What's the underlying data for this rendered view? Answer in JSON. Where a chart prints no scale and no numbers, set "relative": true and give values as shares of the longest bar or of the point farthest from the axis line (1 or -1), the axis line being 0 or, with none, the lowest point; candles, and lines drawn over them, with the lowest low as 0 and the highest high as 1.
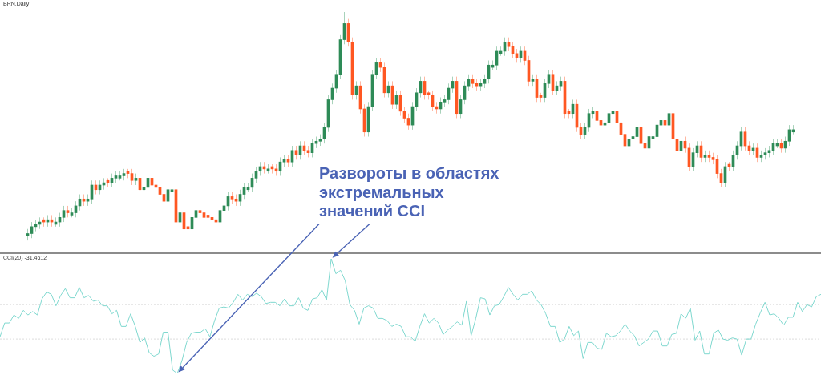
{
  "chart_data": [
    {
      "type": "candlestick",
      "title": "BRN,Daily",
      "relative": true,
      "categories": [
        null,
        null,
        null,
        null,
        null,
        null,
        null,
        null,
        null,
        null,
        null,
        null,
        null,
        null,
        null,
        null,
        null,
        null,
        null,
        null,
        null,
        null,
        null,
        null,
        null,
        null,
        null,
        null,
        null,
        null,
        null,
        null,
        null,
        null,
        null,
        null,
        null,
        null,
        null,
        null,
        null,
        null,
        null,
        null,
        null,
        null,
        null,
        null,
        null,
        null,
        null,
        null,
        null,
        null,
        null,
        null,
        null,
        null,
        null,
        null,
        null,
        null,
        null,
        null,
        null,
        null,
        null,
        null,
        null,
        null,
        null,
        null,
        null,
        null,
        null,
        null,
        null,
        null,
        null,
        null,
        null,
        null,
        null,
        null,
        null,
        null,
        null,
        null,
        null,
        null,
        null,
        null,
        null,
        null,
        null,
        null,
        null,
        null,
        null,
        null,
        null,
        null,
        null,
        null,
        null,
        null,
        null,
        null,
        null,
        null,
        null,
        null,
        null,
        null,
        null,
        null,
        null,
        null,
        null,
        null,
        null,
        null,
        null,
        null,
        null,
        null,
        null,
        null,
        null,
        null,
        null,
        null,
        null,
        null,
        null,
        null,
        null,
        null,
        null,
        null,
        null,
        null,
        null,
        null,
        null,
        null,
        null,
        null,
        null,
        null,
        null,
        null,
        null,
        null,
        null,
        null,
        null,
        null,
        null,
        null,
        null,
        null,
        null,
        null,
        null,
        null,
        null,
        null,
        null,
        null,
        null,
        null,
        null,
        null,
        null,
        null,
        null,
        null,
        null,
        null,
        null,
        null,
        null,
        null,
        null,
        null,
        null,
        null,
        null,
        null,
        null,
        null
      ],
      "ohlc": [
        [
          0.03,
          0.06,
          0.01,
          0.04
        ],
        [
          0.04,
          0.09,
          0.02,
          0.07
        ],
        [
          0.07,
          0.1,
          0.05,
          0.08
        ],
        [
          0.08,
          0.11,
          0.06,
          0.09
        ],
        [
          0.1,
          0.11,
          0.07,
          0.09
        ],
        [
          0.09,
          0.12,
          0.07,
          0.1
        ],
        [
          0.1,
          0.12,
          0.07,
          0.09
        ],
        [
          0.08,
          0.11,
          0.07,
          0.09
        ],
        [
          0.09,
          0.13,
          0.07,
          0.11
        ],
        [
          0.11,
          0.16,
          0.09,
          0.14
        ],
        [
          0.14,
          0.16,
          0.11,
          0.13
        ],
        [
          0.12,
          0.15,
          0.11,
          0.13
        ],
        [
          0.13,
          0.18,
          0.11,
          0.16
        ],
        [
          0.16,
          0.21,
          0.14,
          0.19
        ],
        [
          0.19,
          0.21,
          0.16,
          0.18
        ],
        [
          0.18,
          0.21,
          0.16,
          0.19
        ],
        [
          0.19,
          0.27,
          0.17,
          0.25
        ],
        [
          0.25,
          0.27,
          0.21,
          0.23
        ],
        [
          0.23,
          0.27,
          0.21,
          0.25
        ],
        [
          0.25,
          0.28,
          0.23,
          0.26
        ],
        [
          0.27,
          0.28,
          0.24,
          0.26
        ],
        [
          0.26,
          0.3,
          0.24,
          0.28
        ],
        [
          0.28,
          0.31,
          0.26,
          0.29
        ],
        [
          0.28,
          0.31,
          0.27,
          0.29
        ],
        [
          0.29,
          0.32,
          0.27,
          0.3
        ],
        [
          0.31,
          0.32,
          0.28,
          0.3
        ],
        [
          0.3,
          0.32,
          0.25,
          0.27
        ],
        [
          0.27,
          0.3,
          0.25,
          0.28
        ],
        [
          0.28,
          0.3,
          0.21,
          0.23
        ],
        [
          0.23,
          0.26,
          0.21,
          0.24
        ],
        [
          0.24,
          0.3,
          0.22,
          0.28
        ],
        [
          0.28,
          0.3,
          0.23,
          0.25
        ],
        [
          0.25,
          0.27,
          0.22,
          0.24
        ],
        [
          0.24,
          0.26,
          0.19,
          0.21
        ],
        [
          0.21,
          0.23,
          0.16,
          0.18
        ],
        [
          0.18,
          0.25,
          0.16,
          0.23
        ],
        [
          0.22,
          0.25,
          0.21,
          0.23
        ],
        [
          0.23,
          0.25,
          0.07,
          0.09
        ],
        [
          0.09,
          0.15,
          0.07,
          0.13
        ],
        [
          0.13,
          0.15,
          0.0,
          0.06
        ],
        [
          0.07,
          0.08,
          0.04,
          0.06
        ],
        [
          0.06,
          0.13,
          0.04,
          0.11
        ],
        [
          0.11,
          0.16,
          0.09,
          0.14
        ],
        [
          0.14,
          0.16,
          0.11,
          0.13
        ],
        [
          0.13,
          0.15,
          0.09,
          0.11
        ],
        [
          0.12,
          0.13,
          0.09,
          0.11
        ],
        [
          0.11,
          0.13,
          0.08,
          0.1
        ],
        [
          0.1,
          0.12,
          0.07,
          0.09
        ],
        [
          0.09,
          0.16,
          0.07,
          0.14
        ],
        [
          0.14,
          0.18,
          0.12,
          0.16
        ],
        [
          0.16,
          0.22,
          0.14,
          0.2
        ],
        [
          0.2,
          0.22,
          0.17,
          0.19
        ],
        [
          0.19,
          0.21,
          0.16,
          0.18
        ],
        [
          0.18,
          0.23,
          0.16,
          0.21
        ],
        [
          0.21,
          0.26,
          0.19,
          0.24
        ],
        [
          0.23,
          0.26,
          0.22,
          0.24
        ],
        [
          0.24,
          0.3,
          0.22,
          0.28
        ],
        [
          0.28,
          0.33,
          0.26,
          0.31
        ],
        [
          0.31,
          0.35,
          0.29,
          0.33
        ],
        [
          0.33,
          0.35,
          0.3,
          0.32
        ],
        [
          0.31,
          0.34,
          0.3,
          0.32
        ],
        [
          0.33,
          0.34,
          0.3,
          0.32
        ],
        [
          0.32,
          0.34,
          0.29,
          0.31
        ],
        [
          0.31,
          0.37,
          0.29,
          0.35
        ],
        [
          0.35,
          0.38,
          0.33,
          0.36
        ],
        [
          0.36,
          0.38,
          0.33,
          0.35
        ],
        [
          0.35,
          0.42,
          0.33,
          0.4
        ],
        [
          0.4,
          0.42,
          0.36,
          0.38
        ],
        [
          0.38,
          0.44,
          0.36,
          0.42
        ],
        [
          0.42,
          0.44,
          0.38,
          0.4
        ],
        [
          0.4,
          0.42,
          0.37,
          0.39
        ],
        [
          0.39,
          0.45,
          0.37,
          0.43
        ],
        [
          0.43,
          0.46,
          0.41,
          0.44
        ],
        [
          0.44,
          0.47,
          0.42,
          0.45
        ],
        [
          0.45,
          0.52,
          0.43,
          0.5
        ],
        [
          0.5,
          0.64,
          0.48,
          0.62
        ],
        [
          0.62,
          0.69,
          0.6,
          0.67
        ],
        [
          0.67,
          0.75,
          0.65,
          0.73
        ],
        [
          0.73,
          0.9,
          0.71,
          0.88
        ],
        [
          0.88,
          1.0,
          0.86,
          0.95
        ],
        [
          0.95,
          0.97,
          0.85,
          0.87
        ],
        [
          0.87,
          0.89,
          0.62,
          0.64
        ],
        [
          0.64,
          0.7,
          0.62,
          0.68
        ],
        [
          0.68,
          0.7,
          0.56,
          0.58
        ],
        [
          0.58,
          0.6,
          0.46,
          0.48
        ],
        [
          0.48,
          0.61,
          0.46,
          0.59
        ],
        [
          0.59,
          0.75,
          0.57,
          0.73
        ],
        [
          0.73,
          0.8,
          0.71,
          0.78
        ],
        [
          0.78,
          0.8,
          0.74,
          0.76
        ],
        [
          0.76,
          0.78,
          0.63,
          0.65
        ],
        [
          0.65,
          0.7,
          0.63,
          0.68
        ],
        [
          0.68,
          0.7,
          0.58,
          0.6
        ],
        [
          0.6,
          0.66,
          0.58,
          0.64
        ],
        [
          0.64,
          0.66,
          0.55,
          0.57
        ],
        [
          0.57,
          0.59,
          0.52,
          0.54
        ],
        [
          0.54,
          0.56,
          0.49,
          0.51
        ],
        [
          0.51,
          0.61,
          0.49,
          0.59
        ],
        [
          0.59,
          0.67,
          0.57,
          0.65
        ],
        [
          0.65,
          0.72,
          0.63,
          0.7
        ],
        [
          0.7,
          0.72,
          0.62,
          0.64
        ],
        [
          0.65,
          0.66,
          0.62,
          0.64
        ],
        [
          0.64,
          0.66,
          0.57,
          0.59
        ],
        [
          0.59,
          0.61,
          0.56,
          0.58
        ],
        [
          0.58,
          0.63,
          0.56,
          0.61
        ],
        [
          0.61,
          0.64,
          0.59,
          0.62
        ],
        [
          0.62,
          0.69,
          0.6,
          0.67
        ],
        [
          0.67,
          0.72,
          0.65,
          0.7
        ],
        [
          0.7,
          0.72,
          0.54,
          0.56
        ],
        [
          0.56,
          0.64,
          0.54,
          0.62
        ],
        [
          0.62,
          0.7,
          0.6,
          0.68
        ],
        [
          0.68,
          0.73,
          0.66,
          0.71
        ],
        [
          0.71,
          0.73,
          0.67,
          0.69
        ],
        [
          0.69,
          0.71,
          0.66,
          0.68
        ],
        [
          0.68,
          0.71,
          0.66,
          0.69
        ],
        [
          0.69,
          0.73,
          0.67,
          0.71
        ],
        [
          0.71,
          0.79,
          0.69,
          0.77
        ],
        [
          0.76,
          0.79,
          0.75,
          0.77
        ],
        [
          0.77,
          0.85,
          0.75,
          0.83
        ],
        [
          0.82,
          0.85,
          0.81,
          0.83
        ],
        [
          0.83,
          0.89,
          0.81,
          0.87
        ],
        [
          0.87,
          0.89,
          0.83,
          0.85
        ],
        [
          0.85,
          0.87,
          0.8,
          0.82
        ],
        [
          0.82,
          0.84,
          0.78,
          0.8
        ],
        [
          0.8,
          0.85,
          0.78,
          0.83
        ],
        [
          0.83,
          0.85,
          0.77,
          0.79
        ],
        [
          0.79,
          0.81,
          0.68,
          0.7
        ],
        [
          0.7,
          0.73,
          0.68,
          0.71
        ],
        [
          0.71,
          0.73,
          0.61,
          0.63
        ],
        [
          0.64,
          0.65,
          0.61,
          0.63
        ],
        [
          0.63,
          0.71,
          0.61,
          0.69
        ],
        [
          0.69,
          0.75,
          0.67,
          0.73
        ],
        [
          0.73,
          0.75,
          0.64,
          0.66
        ],
        [
          0.66,
          0.7,
          0.64,
          0.68
        ],
        [
          0.68,
          0.72,
          0.66,
          0.7
        ],
        [
          0.7,
          0.72,
          0.54,
          0.56
        ],
        [
          0.57,
          0.58,
          0.54,
          0.56
        ],
        [
          0.56,
          0.62,
          0.54,
          0.6
        ],
        [
          0.6,
          0.62,
          0.48,
          0.5
        ],
        [
          0.5,
          0.52,
          0.45,
          0.47
        ],
        [
          0.47,
          0.52,
          0.45,
          0.5
        ],
        [
          0.5,
          0.58,
          0.48,
          0.56
        ],
        [
          0.56,
          0.59,
          0.54,
          0.57
        ],
        [
          0.57,
          0.59,
          0.51,
          0.53
        ],
        [
          0.53,
          0.55,
          0.49,
          0.51
        ],
        [
          0.51,
          0.54,
          0.49,
          0.52
        ],
        [
          0.52,
          0.58,
          0.5,
          0.56
        ],
        [
          0.56,
          0.59,
          0.54,
          0.57
        ],
        [
          0.57,
          0.59,
          0.5,
          0.52
        ],
        [
          0.52,
          0.54,
          0.45,
          0.47
        ],
        [
          0.47,
          0.49,
          0.4,
          0.42
        ],
        [
          0.42,
          0.47,
          0.4,
          0.45
        ],
        [
          0.45,
          0.48,
          0.43,
          0.46
        ],
        [
          0.46,
          0.52,
          0.44,
          0.5
        ],
        [
          0.5,
          0.52,
          0.41,
          0.43
        ],
        [
          0.43,
          0.45,
          0.39,
          0.41
        ],
        [
          0.41,
          0.48,
          0.39,
          0.46
        ],
        [
          0.45,
          0.48,
          0.44,
          0.46
        ],
        [
          0.46,
          0.53,
          0.44,
          0.51
        ],
        [
          0.51,
          0.55,
          0.49,
          0.53
        ],
        [
          0.53,
          0.55,
          0.49,
          0.51
        ],
        [
          0.51,
          0.58,
          0.49,
          0.56
        ],
        [
          0.56,
          0.58,
          0.43,
          0.45
        ],
        [
          0.45,
          0.47,
          0.38,
          0.4
        ],
        [
          0.4,
          0.46,
          0.38,
          0.44
        ],
        [
          0.44,
          0.46,
          0.39,
          0.41
        ],
        [
          0.41,
          0.43,
          0.31,
          0.33
        ],
        [
          0.33,
          0.41,
          0.31,
          0.39
        ],
        [
          0.39,
          0.44,
          0.37,
          0.42
        ],
        [
          0.42,
          0.44,
          0.35,
          0.37
        ],
        [
          0.37,
          0.4,
          0.35,
          0.38
        ],
        [
          0.38,
          0.4,
          0.35,
          0.37
        ],
        [
          0.37,
          0.39,
          0.34,
          0.36
        ],
        [
          0.36,
          0.38,
          0.28,
          0.3
        ],
        [
          0.3,
          0.32,
          0.24,
          0.26
        ],
        [
          0.26,
          0.35,
          0.24,
          0.33
        ],
        [
          0.34,
          0.35,
          0.31,
          0.33
        ],
        [
          0.33,
          0.4,
          0.31,
          0.38
        ],
        [
          0.38,
          0.44,
          0.36,
          0.42
        ],
        [
          0.42,
          0.5,
          0.4,
          0.48
        ],
        [
          0.48,
          0.5,
          0.4,
          0.42
        ],
        [
          0.42,
          0.44,
          0.38,
          0.4
        ],
        [
          0.4,
          0.43,
          0.38,
          0.41
        ],
        [
          0.41,
          0.43,
          0.35,
          0.37
        ],
        [
          0.37,
          0.4,
          0.35,
          0.38
        ],
        [
          0.38,
          0.41,
          0.36,
          0.39
        ],
        [
          0.39,
          0.42,
          0.37,
          0.4
        ],
        [
          0.4,
          0.45,
          0.38,
          0.43
        ],
        [
          0.42,
          0.45,
          0.41,
          0.43
        ],
        [
          0.43,
          0.45,
          0.39,
          0.41
        ],
        [
          0.41,
          0.46,
          0.39,
          0.44
        ],
        [
          0.44,
          0.51,
          0.42,
          0.49
        ],
        [
          0.48,
          0.51,
          0.47,
          0.49
        ]
      ],
      "annotations": [
        "Развороты в областях экстремальных значений CCI"
      ]
    },
    {
      "type": "line",
      "title": "CCI(20) -31.4612",
      "relative": true,
      "marker": "none",
      "categories": [
        null,
        null,
        null,
        null,
        null,
        null,
        null,
        null,
        null,
        null,
        null,
        null,
        null,
        null,
        null,
        null,
        null,
        null,
        null,
        null,
        null,
        null,
        null,
        null,
        null,
        null,
        null,
        null,
        null,
        null,
        null,
        null,
        null,
        null,
        null,
        null,
        null,
        null,
        null,
        null,
        null,
        null,
        null,
        null,
        null,
        null,
        null,
        null,
        null,
        null,
        null,
        null,
        null,
        null,
        null,
        null,
        null,
        null,
        null,
        null,
        null,
        null,
        null,
        null,
        null,
        null,
        null,
        null,
        null,
        null,
        null,
        null,
        null,
        null,
        null,
        null,
        null,
        null,
        null,
        null,
        null,
        null,
        null,
        null,
        null,
        null,
        null,
        null,
        null,
        null,
        null,
        null,
        null,
        null,
        null,
        null,
        null,
        null,
        null,
        null,
        null,
        null,
        null,
        null,
        null,
        null,
        null,
        null,
        null,
        null,
        null,
        null,
        null,
        null,
        null,
        null,
        null,
        null,
        null,
        null,
        null,
        null,
        null,
        null,
        null,
        null,
        null,
        null,
        null,
        null,
        null,
        null,
        null,
        null,
        null,
        null,
        null,
        null,
        null,
        null,
        null,
        null,
        null,
        null,
        null,
        null,
        null,
        null,
        null,
        null,
        null,
        null,
        null,
        null,
        null,
        null,
        null,
        null,
        null,
        null,
        null,
        null,
        null,
        null,
        null,
        null,
        null,
        null,
        null,
        null,
        null,
        null,
        null,
        null,
        null,
        null,
        null
      ],
      "series": [
        {
          "color": "#7fd8cf",
          "values": [
            0.32,
            0.44,
            0.44,
            0.51,
            0.48,
            0.55,
            0.51,
            0.54,
            0.51,
            0.65,
            0.71,
            0.69,
            0.59,
            0.68,
            0.74,
            0.66,
            0.66,
            0.75,
            0.66,
            0.68,
            0.63,
            0.64,
            0.59,
            0.59,
            0.52,
            0.55,
            0.41,
            0.41,
            0.52,
            0.41,
            0.27,
            0.31,
            0.18,
            0.15,
            0.17,
            0.36,
            0.36,
            0.03,
            0,
            0.11,
            0.27,
            0.35,
            0.36,
            0.36,
            0.39,
            0.32,
            0.46,
            0.57,
            0.58,
            0.57,
            0.62,
            0.69,
            0.64,
            0.69,
            0.67,
            0.7,
            0.67,
            0.61,
            0.62,
            0.62,
            0.59,
            0.65,
            0.59,
            0.59,
            0.66,
            0.57,
            0.55,
            0.65,
            0.66,
            0.73,
            0.64,
            1,
            0.87,
            0.9,
            0.81,
            0.6,
            0.55,
            0.43,
            0.57,
            0.59,
            0.57,
            0.48,
            0.48,
            0.46,
            0.41,
            0.43,
            0.41,
            0.32,
            0.32,
            0.28,
            0.41,
            0.52,
            0.44,
            0.48,
            0.44,
            0.34,
            0.38,
            0.41,
            0.45,
            0.42,
            0.63,
            0.33,
            0.48,
            0.66,
            0.65,
            0.51,
            0.59,
            0.6,
            0.67,
            0.75,
            0.69,
            0.64,
            0.69,
            0.69,
            0.72,
            0.64,
            0.6,
            0.52,
            0.41,
            0.41,
            0.27,
            0.3,
            0.41,
            0.33,
            0.37,
            0.13,
            0.27,
            0.27,
            0.22,
            0.21,
            0.35,
            0.32,
            0.33,
            0.37,
            0.43,
            0.37,
            0.33,
            0.24,
            0.27,
            0.3,
            0.37,
            0.37,
            0.24,
            0.24,
            0.34,
            0.35,
            0.52,
            0.48,
            0.57,
            0.29,
            0.37,
            0.17,
            0.17,
            0.35,
            0.38,
            0.3,
            0.29,
            0.31,
            0.3,
            0.16,
            0.3,
            0.3,
            0.43,
            0.53,
            0.62,
            0.51,
            0.52,
            0.48,
            0.42,
            0.49,
            0.49,
            0.62,
            0.54,
            0.6,
            0.58,
            0.67,
            0.69
          ]
        }
      ],
      "ref_lines": [
        {
          "axis": "y",
          "value": 0.6,
          "color": "#dcdcdc",
          "line_style": "dotted"
        },
        {
          "axis": "y",
          "value": 0.3,
          "color": "#dcdcdc",
          "line_style": "dotted"
        }
      ]
    }
  ]
}
